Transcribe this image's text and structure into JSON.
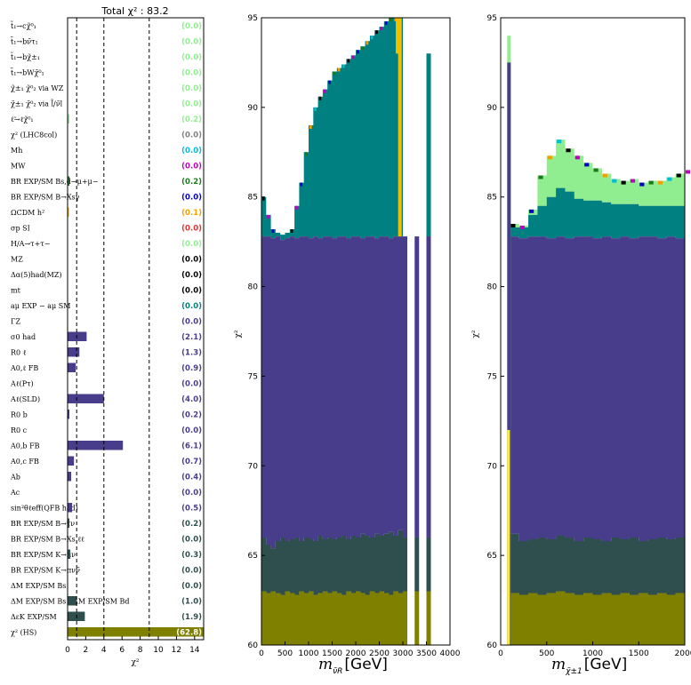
{
  "chart_data": [
    {
      "type": "bar",
      "orientation": "horizontal",
      "title": "Total χ² : 83.2",
      "xlabel": "χ²",
      "xlim": [
        0,
        15
      ],
      "xticks": [
        "0",
        "2",
        "4",
        "6",
        "8",
        "10",
        "12",
        "14"
      ],
      "reference_lines": [
        1,
        4,
        9
      ],
      "rows": [
        {
          "label": "t̃₁→cχ̃⁰₁",
          "value": 0.0,
          "display": "(0.0)",
          "color": "#90ee90"
        },
        {
          "label": "t̃₁→bν̃τ₁",
          "value": 0.0,
          "display": "(0.0)",
          "color": "#90ee90"
        },
        {
          "label": "t̃₁→bχ̃±₁",
          "value": 0.0,
          "display": "(0.0)",
          "color": "#90ee90"
        },
        {
          "label": "t̃₁→bWχ̃⁰₁",
          "value": 0.0,
          "display": "(0.0)",
          "color": "#90ee90"
        },
        {
          "label": "χ̃±₁ χ̃⁰₂ via WZ",
          "value": 0.0,
          "display": "(0.0)",
          "color": "#90ee90"
        },
        {
          "label": "χ̃±₁ χ̃⁰₂ via l̃/ν̃l",
          "value": 0.0,
          "display": "(0.0)",
          "color": "#90ee90"
        },
        {
          "label": "ℓ̃→ℓχ̃⁰₁",
          "value": 0.2,
          "display": "(0.2)",
          "color": "#90ee90"
        },
        {
          "label": "χ² (LHC8col)",
          "value": 0.0,
          "display": "(0.0)",
          "color": "#808080"
        },
        {
          "label": "Mh",
          "value": 0.0,
          "display": "(0.0)",
          "color": "#00bcd4"
        },
        {
          "label": "MW",
          "value": 0.0,
          "display": "(0.0)",
          "color": "#c000c0"
        },
        {
          "label": "BR EXP/SM Bs,d→μ+μ−",
          "value": 0.2,
          "display": "(0.2)",
          "color": "#1a7a1a"
        },
        {
          "label": "BR EXP/SM B→Xsγ",
          "value": 0.0,
          "display": "(0.0)",
          "color": "#0000cc"
        },
        {
          "label": "ΩCDM h²",
          "value": 0.1,
          "display": "(0.1)",
          "color": "#f0a000"
        },
        {
          "label": "σp SI",
          "value": 0.0,
          "display": "(0.0)",
          "color": "#e03030"
        },
        {
          "label": "H/A→τ+τ−",
          "value": 0.0,
          "display": "(0.0)",
          "color": "#90ee90"
        },
        {
          "label": "MZ",
          "value": 0.0,
          "display": "(0.0)",
          "color": "#000000"
        },
        {
          "label": "Δα(5)had(MZ)",
          "value": 0.0,
          "display": "(0.0)",
          "color": "#000000"
        },
        {
          "label": "mt",
          "value": 0.0,
          "display": "(0.0)",
          "color": "#000000"
        },
        {
          "label": "aμ EXP − aμ SM",
          "value": 0.0,
          "display": "(0.0)",
          "color": "#008080"
        },
        {
          "label": "ΓZ",
          "value": 0.0,
          "display": "(0.0)",
          "color": "#483d8b"
        },
        {
          "label": "σ0 had",
          "value": 2.1,
          "display": "(2.1)",
          "color": "#483d8b"
        },
        {
          "label": "R0 ℓ",
          "value": 1.3,
          "display": "(1.3)",
          "color": "#483d8b"
        },
        {
          "label": "A0,ℓ FB",
          "value": 0.9,
          "display": "(0.9)",
          "color": "#483d8b"
        },
        {
          "label": "Aℓ(Pτ)",
          "value": 0.0,
          "display": "(0.0)",
          "color": "#483d8b"
        },
        {
          "label": "Aℓ(SLD)",
          "value": 4.0,
          "display": "(4.0)",
          "color": "#483d8b"
        },
        {
          "label": "R0 b",
          "value": 0.2,
          "display": "(0.2)",
          "color": "#483d8b"
        },
        {
          "label": "R0 c",
          "value": 0.0,
          "display": "(0.0)",
          "color": "#483d8b"
        },
        {
          "label": "A0,b FB",
          "value": 6.1,
          "display": "(6.1)",
          "color": "#483d8b"
        },
        {
          "label": "A0,c FB",
          "value": 0.7,
          "display": "(0.7)",
          "color": "#483d8b"
        },
        {
          "label": "Ab",
          "value": 0.4,
          "display": "(0.4)",
          "color": "#483d8b"
        },
        {
          "label": "Ac",
          "value": 0.0,
          "display": "(0.0)",
          "color": "#483d8b"
        },
        {
          "label": "sin²θℓeff(QFB had)",
          "value": 0.5,
          "display": "(0.5)",
          "color": "#483d8b"
        },
        {
          "label": "BR EXP/SM B→τν",
          "value": 0.2,
          "display": "(0.2)",
          "color": "#2f4f4f"
        },
        {
          "label": "BR EXP/SM B→Xs ℓℓ",
          "value": 0.0,
          "display": "(0.0)",
          "color": "#2f4f4f"
        },
        {
          "label": "BR EXP/SM K→μν",
          "value": 0.3,
          "display": "(0.3)",
          "color": "#2f4f4f"
        },
        {
          "label": "BR EXP/SM K→πνν̄",
          "value": 0.0,
          "display": "(0.0)",
          "color": "#2f4f4f"
        },
        {
          "label": "ΔM EXP/SM Bs",
          "value": 0.0,
          "display": "(0.0)",
          "color": "#2f4f4f"
        },
        {
          "label": "ΔM EXP/SM Bs / ΔM EXP/SM Bd",
          "value": 1.0,
          "display": "(1.0)",
          "color": "#2f4f4f"
        },
        {
          "label": "ΔεK EXP/SM",
          "value": 1.9,
          "display": "(1.9)",
          "color": "#2f4f4f"
        },
        {
          "label": "χ² (HS)",
          "value": 62.8,
          "display": "(62.8)",
          "color": "#808000"
        }
      ]
    },
    {
      "type": "area",
      "stacked": true,
      "xlabel_var": "m",
      "xlabel_sub": "ν̃R",
      "xlabel_unit": "[GeV]",
      "ylabel": "χ²",
      "xlim": [
        0,
        4000
      ],
      "ylim": [
        60,
        95
      ],
      "xticks": [
        "0",
        "500",
        "1000",
        "1500",
        "2000",
        "2500",
        "3000",
        "3500",
        "4000"
      ],
      "yticks": [
        "60",
        "65",
        "70",
        "75",
        "80",
        "85",
        "90",
        "95"
      ],
      "mass_points": [
        0,
        100,
        200,
        300,
        400,
        500,
        600,
        700,
        800,
        900,
        1000,
        1100,
        1200,
        1300,
        1400,
        1500,
        1600,
        1700,
        1800,
        1900,
        2000,
        2100,
        2200,
        2300,
        2400,
        2500,
        2600,
        2700,
        2800,
        2900
      ],
      "layer_tops": {
        "HS": [
          63.0,
          62.9,
          63.0,
          62.9,
          62.8,
          63.0,
          62.9,
          62.8,
          63.0,
          62.9,
          63.0,
          62.8,
          62.9,
          63.0,
          62.9,
          63.0,
          62.9,
          62.8,
          63.0,
          62.9,
          63.0,
          62.9,
          62.8,
          63.0,
          62.9,
          63.0,
          62.9,
          62.8,
          63.0,
          62.9
        ],
        "flavour": [
          66.0,
          65.6,
          65.4,
          65.8,
          66.0,
          65.8,
          65.9,
          66.0,
          65.8,
          66.0,
          65.9,
          65.8,
          66.1,
          65.9,
          66.0,
          65.9,
          66.0,
          66.1,
          65.9,
          66.1,
          66.0,
          66.2,
          66.1,
          66.0,
          66.2,
          66.1,
          66.2,
          66.3,
          66.1,
          66.4
        ],
        "ewpo": [
          82.8,
          82.8,
          82.7,
          82.8,
          82.6,
          82.7,
          82.8,
          82.7,
          82.8,
          82.8,
          82.7,
          82.8,
          82.7,
          82.8,
          82.8,
          82.7,
          82.8,
          82.8,
          82.7,
          82.8,
          82.8,
          82.7,
          82.8,
          82.8,
          82.7,
          82.8,
          82.8,
          82.7,
          82.8,
          82.8
        ],
        "total": [
          85.0,
          84.0,
          83.2,
          83.0,
          82.9,
          83.0,
          83.2,
          84.5,
          85.8,
          87.5,
          89.0,
          90.0,
          90.6,
          91.0,
          91.5,
          92.0,
          92.2,
          92.4,
          92.7,
          92.9,
          93.2,
          93.4,
          93.7,
          94.0,
          94.3,
          94.5,
          94.8,
          95.0,
          95.0,
          95.0
        ]
      },
      "extra_columns": [
        {
          "x": 3000,
          "top": 82.8
        },
        {
          "x": 3250,
          "top": 82.8
        },
        {
          "x": 3500,
          "top": 93.0
        }
      ],
      "colors": {
        "HS": "#808000",
        "flavour": "#2f4f4f",
        "ewpo": "#483d8b",
        "astro": "#008080",
        "gap_band": "#f0c000"
      }
    },
    {
      "type": "area",
      "stacked": true,
      "xlabel_var": "m",
      "xlabel_sub": "χ̃±1",
      "xlabel_unit": "[GeV]",
      "ylabel": "χ²",
      "xlim": [
        0,
        2000
      ],
      "ylim": [
        60,
        95
      ],
      "xticks": [
        "0",
        "500",
        "1000",
        "1500",
        "2000"
      ],
      "yticks": [
        "60",
        "65",
        "70",
        "75",
        "80",
        "85",
        "90",
        "95"
      ],
      "mass_points": [
        100,
        200,
        300,
        400,
        500,
        600,
        700,
        800,
        900,
        1000,
        1100,
        1200,
        1300,
        1400,
        1500,
        1600,
        1700,
        1800,
        1900,
        2000
      ],
      "layer_tops": {
        "HS": [
          62.9,
          62.8,
          62.9,
          62.8,
          62.9,
          63.0,
          62.9,
          62.8,
          62.9,
          62.8,
          62.9,
          62.8,
          62.9,
          62.8,
          62.9,
          62.8,
          62.9,
          62.8,
          62.9,
          62.8
        ],
        "flavour": [
          66.2,
          65.8,
          65.9,
          66.0,
          65.9,
          66.1,
          66.0,
          65.8,
          66.0,
          65.9,
          65.8,
          66.0,
          65.9,
          66.0,
          65.8,
          65.9,
          66.0,
          65.9,
          66.0,
          65.9
        ],
        "ewpo": [
          82.8,
          82.7,
          82.8,
          82.8,
          82.7,
          82.8,
          82.7,
          82.8,
          82.8,
          82.7,
          82.8,
          82.7,
          82.8,
          82.7,
          82.8,
          82.8,
          82.7,
          82.8,
          82.7,
          82.8
        ],
        "astro": [
          83.3,
          83.3,
          84.0,
          84.5,
          85.0,
          85.5,
          85.3,
          84.9,
          84.8,
          84.8,
          84.7,
          84.6,
          84.6,
          84.6,
          84.5,
          84.5,
          84.5,
          84.5,
          84.5,
          84.5
        ],
        "total": [
          83.5,
          83.4,
          84.3,
          86.2,
          87.3,
          88.2,
          87.7,
          87.3,
          86.9,
          86.6,
          86.3,
          86.0,
          85.9,
          86.0,
          85.8,
          85.9,
          85.9,
          86.1,
          86.3,
          86.5
        ]
      },
      "spike": {
        "x": 100,
        "top": 94.0
      },
      "colors": {
        "HS": "#808000",
        "flavour": "#2f4f4f",
        "ewpo": "#483d8b",
        "astro": "#008080",
        "top": "#90ee90"
      }
    }
  ]
}
